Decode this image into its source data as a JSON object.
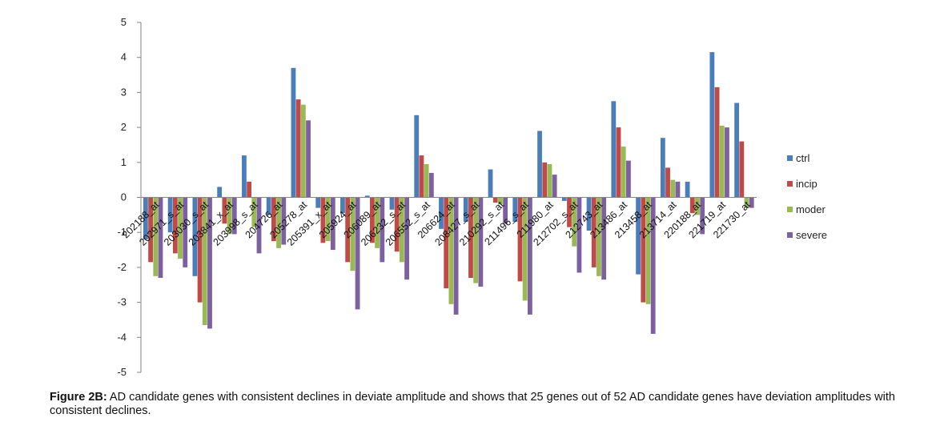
{
  "caption": {
    "label": "Figure 2B:",
    "text": " AD candidate genes with consistent declines in deviate amplitude and shows that 25 genes out of 52 AD candidate genes have deviation amplitudes with consistent declines."
  },
  "chart_data": {
    "type": "bar",
    "title": "",
    "xlabel": "",
    "ylabel": "",
    "ylim": [
      -5,
      5
    ],
    "yticks": [
      -5,
      -4,
      -3,
      -2,
      -1,
      0,
      1,
      2,
      3,
      4,
      5
    ],
    "grid": false,
    "legend_position": "right",
    "categories": [
      "202188_at",
      "202971_s_at",
      "203030_s_at",
      "203841_x_at",
      "203998_s_at",
      "204726_at",
      "205278_at",
      "205391_x_at",
      "205924_at",
      "206089_at",
      "206232_s_at",
      "206552_s_at",
      "206624_at",
      "208427_s_at",
      "210292_s_at",
      "211496_s_at",
      "211980_at",
      "212702_s_at",
      "212743_at",
      "213486_at",
      "213458_at",
      "213714_at",
      "220188_at",
      "221719_at",
      "221730_at"
    ],
    "series": [
      {
        "name": "ctrl",
        "color": "#4a7ebb",
        "values": [
          -1.2,
          -1.0,
          -2.25,
          0.3,
          1.2,
          -0.5,
          3.7,
          -0.3,
          -0.45,
          0.05,
          -0.35,
          2.35,
          -0.9,
          -0.7,
          0.8,
          -0.7,
          1.9,
          -0.1,
          -0.95,
          2.75,
          -2.2,
          1.7,
          0.45,
          4.15,
          2.7
        ]
      },
      {
        "name": "incip",
        "color": "#be4b48",
        "values": [
          -1.85,
          -1.6,
          -3.0,
          -0.75,
          0.45,
          -1.25,
          2.8,
          -1.3,
          -1.85,
          -1.3,
          -1.55,
          1.2,
          -2.6,
          -2.3,
          -0.15,
          -2.4,
          1.0,
          -0.85,
          -2.0,
          2.0,
          -3.0,
          0.85,
          -0.45,
          3.15,
          1.6
        ]
      },
      {
        "name": "moder",
        "color": "#98b954",
        "values": [
          -2.25,
          -1.75,
          -3.65,
          -1.05,
          -0.85,
          -1.45,
          2.65,
          -1.25,
          -2.1,
          -1.45,
          -1.85,
          0.95,
          -3.05,
          -2.45,
          -0.2,
          -2.95,
          0.95,
          -1.4,
          -2.25,
          1.45,
          -3.05,
          0.5,
          -0.5,
          2.05,
          -0.3
        ]
      },
      {
        "name": "severe",
        "color": "#7d60a0",
        "values": [
          -2.3,
          -2.0,
          -3.75,
          -1.05,
          -1.6,
          -1.35,
          2.2,
          -1.5,
          -3.2,
          -1.85,
          -2.35,
          0.7,
          -3.35,
          -2.55,
          -0.75,
          -3.35,
          0.65,
          -2.15,
          -2.35,
          1.05,
          -3.9,
          0.45,
          -1.05,
          2.0,
          -0.3
        ]
      }
    ]
  }
}
